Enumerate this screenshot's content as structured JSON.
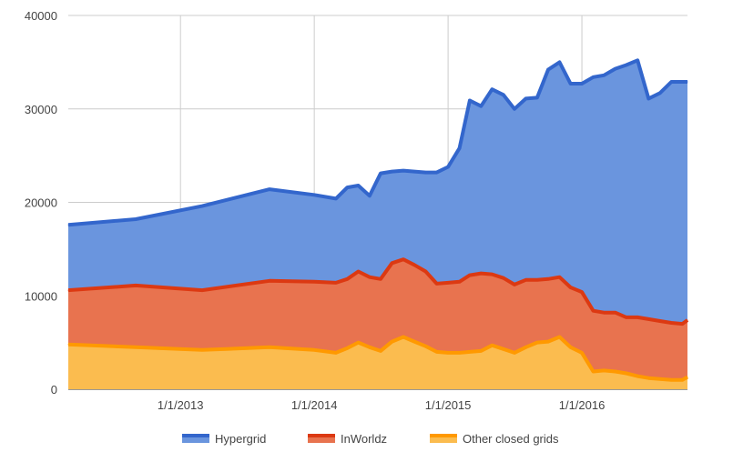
{
  "chart_data": {
    "type": "area",
    "stacked": true,
    "xlabel": "",
    "ylabel": "",
    "x_ticks": [
      "1/1/2013",
      "1/1/2014",
      "1/1/2015",
      "1/1/2016"
    ],
    "y_ticks": [
      "0",
      "10000",
      "20000",
      "30000",
      "40000"
    ],
    "ylim": [
      0,
      40000
    ],
    "xlim": [
      "2012-03-01",
      "2016-10-15"
    ],
    "grid": true,
    "legend_position": "bottom",
    "x": [
      "2012-03-01",
      "2012-09-01",
      "2013-03-01",
      "2013-09-01",
      "2014-01-01",
      "2014-03-01",
      "2014-04-01",
      "2014-05-01",
      "2014-06-01",
      "2014-07-01",
      "2014-08-01",
      "2014-09-01",
      "2014-10-01",
      "2014-11-01",
      "2014-12-01",
      "2015-01-01",
      "2015-02-01",
      "2015-03-01",
      "2015-04-01",
      "2015-05-01",
      "2015-06-01",
      "2015-07-01",
      "2015-08-01",
      "2015-09-01",
      "2015-10-01",
      "2015-11-01",
      "2015-12-01",
      "2016-01-01",
      "2016-02-01",
      "2016-03-01",
      "2016-04-01",
      "2016-05-01",
      "2016-06-01",
      "2016-07-01",
      "2016-08-01",
      "2016-09-01",
      "2016-10-01",
      "2016-10-15"
    ],
    "series": [
      {
        "name": "Other closed grids",
        "color": "#fbbc4f",
        "line_color": "#ff9900",
        "values": [
          4800,
          4500,
          4200,
          4500,
          4200,
          3900,
          4400,
          5000,
          4500,
          4100,
          5100,
          5600,
          5100,
          4600,
          4000,
          3900,
          3900,
          4000,
          4100,
          4700,
          4300,
          3900,
          4500,
          5000,
          5100,
          5600,
          4500,
          3900,
          1900,
          2000,
          1900,
          1700,
          1400,
          1200,
          1100,
          1000,
          1000,
          1300
        ]
      },
      {
        "name": "InWorldz",
        "color": "#e8734f",
        "line_color": "#dc3912",
        "values": [
          5800,
          6600,
          6400,
          7100,
          7300,
          7500,
          7400,
          7600,
          7500,
          7700,
          8400,
          8300,
          8200,
          8000,
          7300,
          7500,
          7600,
          8200,
          8300,
          7600,
          7600,
          7300,
          7200,
          6700,
          6700,
          6400,
          6400,
          6500,
          6500,
          6200,
          6300,
          6000,
          6300,
          6300,
          6200,
          6100,
          6000,
          6100
        ]
      },
      {
        "name": "Hypergrid",
        "color": "#6a95de",
        "line_color": "#3366cc",
        "values": [
          7000,
          7100,
          9000,
          9800,
          9300,
          9000,
          9800,
          9200,
          8700,
          11300,
          9800,
          9500,
          10000,
          10600,
          11900,
          12400,
          14300,
          18700,
          17900,
          19800,
          19600,
          18800,
          19400,
          19500,
          22400,
          23000,
          21800,
          22300,
          25000,
          25400,
          26100,
          27000,
          27500,
          23600,
          24400,
          25800,
          25900,
          25500
        ]
      }
    ],
    "legend": [
      "Hypergrid",
      "InWorldz",
      "Other closed grids"
    ]
  }
}
